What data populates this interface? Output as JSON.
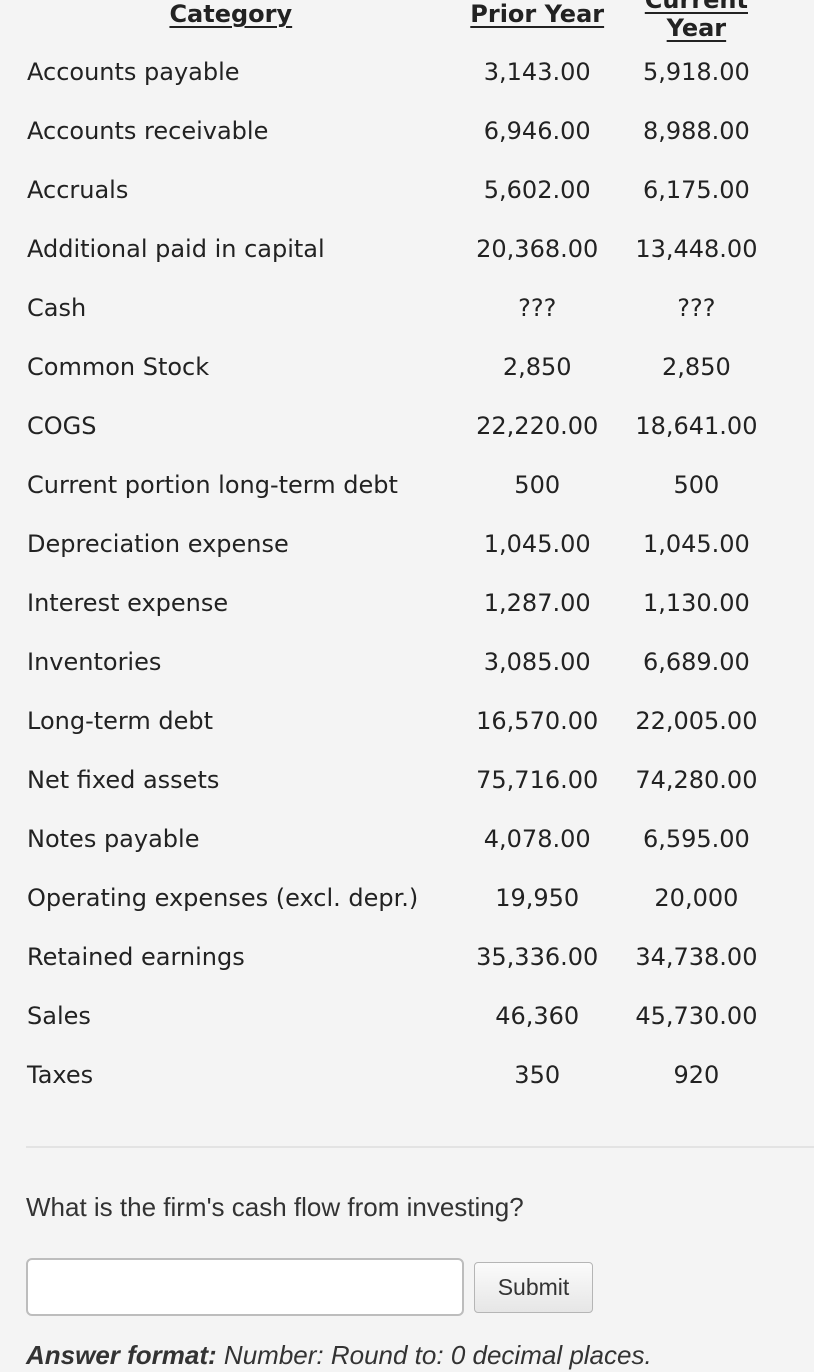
{
  "table": {
    "headers": [
      "Category",
      "Prior Year",
      "Current Year"
    ],
    "rows": [
      {
        "category": "Accounts payable",
        "prior": "3,143.00",
        "current": "5,918.00"
      },
      {
        "category": "Accounts receivable",
        "prior": "6,946.00",
        "current": "8,988.00"
      },
      {
        "category": "Accruals",
        "prior": "5,602.00",
        "current": "6,175.00"
      },
      {
        "category": "Additional paid in capital",
        "prior": "20,368.00",
        "current": "13,448.00"
      },
      {
        "category": "Cash",
        "prior": "???",
        "current": "???"
      },
      {
        "category": "Common Stock",
        "prior": "2,850",
        "current": "2,850"
      },
      {
        "category": "COGS",
        "prior": "22,220.00",
        "current": "18,641.00"
      },
      {
        "category": "Current portion long-term debt",
        "prior": "500",
        "current": "500"
      },
      {
        "category": "Depreciation expense",
        "prior": "1,045.00",
        "current": "1,045.00"
      },
      {
        "category": "Interest expense",
        "prior": "1,287.00",
        "current": "1,130.00"
      },
      {
        "category": "Inventories",
        "prior": "3,085.00",
        "current": "6,689.00"
      },
      {
        "category": "Long-term debt",
        "prior": "16,570.00",
        "current": "22,005.00"
      },
      {
        "category": "Net fixed assets",
        "prior": "75,716.00",
        "current": "74,280.00"
      },
      {
        "category": "Notes payable",
        "prior": "4,078.00",
        "current": "6,595.00"
      },
      {
        "category": "Operating expenses (excl. depr.)",
        "prior": "19,950",
        "current": "20,000"
      },
      {
        "category": "Retained earnings",
        "prior": "35,336.00",
        "current": "34,738.00"
      },
      {
        "category": "Sales",
        "prior": "46,360",
        "current": "45,730.00"
      },
      {
        "category": "Taxes",
        "prior": "350",
        "current": "920"
      }
    ]
  },
  "question": {
    "text": "What is the firm's cash flow from investing?",
    "answer_value": "",
    "answer_placeholder": "",
    "submit_label": "Submit",
    "format_label": "Answer format:",
    "format_text": " Number: Round to: 0 decimal places."
  }
}
